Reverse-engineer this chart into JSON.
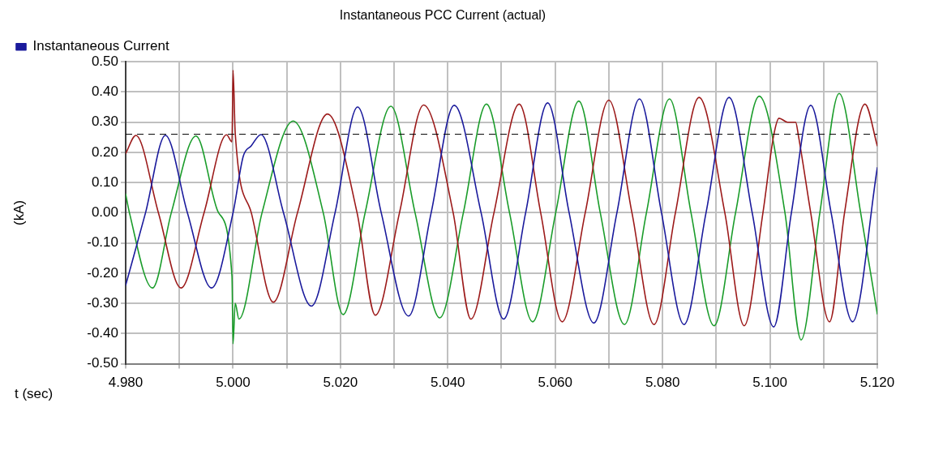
{
  "chart_data": {
    "type": "line",
    "title": "Instantaneous PCC Current (actual)",
    "xlabel": "t (sec)",
    "ylabel": "(kA)",
    "series": [
      {
        "name": "Instantaneous Current",
        "color": "#1a1a9c",
        "x": [
          4.98,
          4.9837,
          4.9874,
          4.9915,
          4.996,
          5.0,
          5.0019,
          5.0034,
          5.0052,
          5.0094,
          5.0146,
          5.019,
          5.0232,
          5.0276,
          5.0327,
          5.0369,
          5.0412,
          5.0462,
          5.0504,
          5.0545,
          5.0586,
          5.0626,
          5.0672,
          5.0715,
          5.0757,
          5.0798,
          5.084,
          5.0881,
          5.0924,
          5.0967,
          5.1007,
          5.104,
          5.1076,
          5.1114,
          5.1154,
          5.12
        ],
        "values": [
          -0.24,
          0,
          0.256,
          0,
          -0.249,
          0,
          0.187,
          0.222,
          0.259,
          0,
          -0.309,
          0,
          0.35,
          0,
          -0.342,
          0,
          0.356,
          0,
          -0.352,
          0,
          0.364,
          0,
          -0.365,
          0,
          0.377,
          0,
          -0.37,
          0,
          0.382,
          0,
          -0.378,
          0,
          0.356,
          0,
          -0.361,
          0.149
        ]
      },
      {
        "color": "#9c1a1a",
        "x": [
          4.98,
          4.9819,
          4.9861,
          4.9903,
          4.9946,
          4.9988,
          4.9998,
          5.0,
          5.0004,
          5.0034,
          5.0075,
          5.012,
          5.0176,
          5.0231,
          5.0265,
          5.031,
          5.0355,
          5.041,
          5.0443,
          5.0486,
          5.0533,
          5.0573,
          5.0613,
          5.0656,
          5.07,
          5.0743,
          5.0784,
          5.0824,
          5.0868,
          5.0916,
          5.0952,
          5.0987,
          5.1007,
          5.1017,
          5.1033,
          5.1048,
          5.1053,
          5.1076,
          5.1111,
          5.1139,
          5.1177,
          5.12
        ],
        "values": [
          0.196,
          0.256,
          0,
          -0.249,
          0,
          0.258,
          0.235,
          0.472,
          0.265,
          0,
          -0.296,
          0,
          0.327,
          0,
          -0.339,
          0,
          0.357,
          0,
          -0.352,
          0,
          0.36,
          0,
          -0.361,
          0,
          0.373,
          0,
          -0.37,
          0,
          0.382,
          0,
          -0.374,
          0,
          0.256,
          0.313,
          0.3,
          0.3,
          0.256,
          0,
          -0.361,
          0,
          0.36,
          0.222
        ]
      },
      {
        "color": "#1a9c2a",
        "x": [
          4.98,
          4.9807,
          4.985,
          4.9885,
          4.9931,
          4.9973,
          4.9998,
          5.0,
          5.0004,
          5.0011,
          5.0054,
          5.0112,
          5.0168,
          5.0205,
          5.0246,
          5.0294,
          5.0339,
          5.0385,
          5.0429,
          5.0472,
          5.0515,
          5.0558,
          5.0601,
          5.0644,
          5.0684,
          5.0729,
          5.077,
          5.0813,
          5.0853,
          5.0896,
          5.0936,
          5.098,
          5.1028,
          5.1058,
          5.1093,
          5.1129,
          5.1169,
          5.12
        ],
        "values": [
          0.062,
          0,
          -0.249,
          0,
          0.254,
          0,
          -0.21,
          -0.434,
          -0.3,
          -0.352,
          0,
          0.304,
          0,
          -0.337,
          0,
          0.353,
          0,
          -0.348,
          0,
          0.36,
          0,
          -0.361,
          0,
          0.37,
          0,
          -0.37,
          0,
          0.377,
          0,
          -0.374,
          0,
          0.386,
          0,
          -0.421,
          0,
          0.395,
          0,
          -0.335
        ]
      }
    ],
    "ref_lines": [
      {
        "axis": "y",
        "value": 0.26,
        "color": "#000000",
        "line_style": "dashed"
      }
    ],
    "xlim": [
      4.98,
      5.12
    ],
    "xticks": [
      {
        "value": 4.98,
        "label": "4.980"
      },
      {
        "value": 4.99,
        "label": null
      },
      {
        "value": 5.0,
        "label": "5.000"
      },
      {
        "value": 5.01,
        "label": null
      },
      {
        "value": 5.02,
        "label": "5.020"
      },
      {
        "value": 5.03,
        "label": null
      },
      {
        "value": 5.04,
        "label": "5.040"
      },
      {
        "value": 5.05,
        "label": null
      },
      {
        "value": 5.06,
        "label": "5.060"
      },
      {
        "value": 5.07,
        "label": null
      },
      {
        "value": 5.08,
        "label": "5.080"
      },
      {
        "value": 5.09,
        "label": null
      },
      {
        "value": 5.1,
        "label": "5.100"
      },
      {
        "value": 5.11,
        "label": null
      },
      {
        "value": 5.12,
        "label": "5.120"
      }
    ],
    "ylim": [
      -0.5,
      0.5
    ],
    "yticks": [
      {
        "value": -0.5,
        "label": "-0.50"
      },
      {
        "value": -0.4,
        "label": "-0.40"
      },
      {
        "value": -0.3,
        "label": "-0.30"
      },
      {
        "value": -0.2,
        "label": "-0.20"
      },
      {
        "value": -0.1,
        "label": "-0.10"
      },
      {
        "value": 0,
        "label": "0.00"
      },
      {
        "value": 0.1,
        "label": "0.10"
      },
      {
        "value": 0.2,
        "label": "0.20"
      },
      {
        "value": 0.3,
        "label": "0.30"
      },
      {
        "value": 0.4,
        "label": "0.40"
      },
      {
        "value": 0.5,
        "label": "0.50"
      }
    ],
    "grid": true,
    "legend": "top left",
    "marker": "none",
    "line_style": "solid"
  }
}
